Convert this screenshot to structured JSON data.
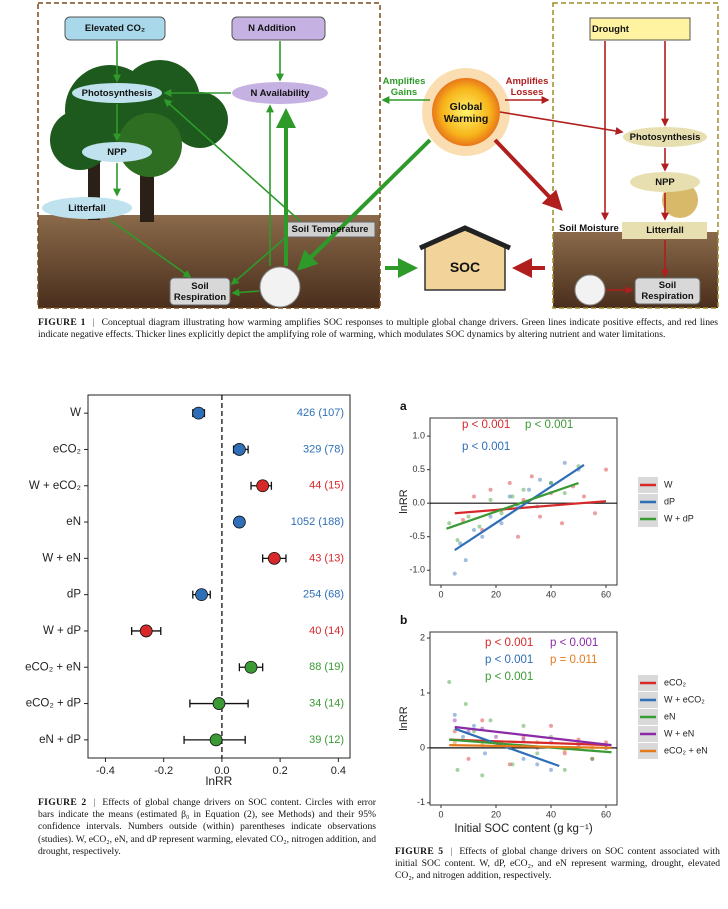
{
  "figure1": {
    "left": {
      "elevated_co2": "Elevated CO₂",
      "n_addition": "N Addition",
      "photosynthesis": "Photosynthesis",
      "n_availability": "N Availability",
      "npp": "NPP",
      "litterfall": "Litterfall",
      "soil_temperature": "Soil Temperature",
      "soil_respiration": "Soil Respiration"
    },
    "center": {
      "amplifies_gains": "Amplifies Gains",
      "global_warming": "Global Warming",
      "amplifies_losses": "Amplifies Losses",
      "soc": "SOC"
    },
    "right": {
      "drought": "Drought",
      "photosynthesis": "Photosynthesis",
      "npp": "NPP",
      "soil_moisture": "Soil Moisture",
      "litterfall": "Litterfall",
      "soil_respiration": "Soil Respiration"
    },
    "caption": {
      "label": "FIGURE 1",
      "separator": "|",
      "text": "Conceptual diagram illustrating how warming amplifies SOC responses to multiple global change drivers. Green lines indicate positive effects, and red lines indicate negative effects. Thicker lines explicitly depict the amplifying role of warming, which modulates SOC dynamics by altering nutrient and water limitations."
    }
  },
  "chart_data": [
    {
      "type": "forest",
      "xlabel": "lnRR",
      "categories": [
        "W",
        "eCO₂",
        "W + eCO₂",
        "eN",
        "W + eN",
        "dP",
        "W + dP",
        "eCO₂ + eN",
        "eCO₂ + dP",
        "eN + dP"
      ],
      "values": [
        -0.08,
        0.06,
        0.14,
        0.06,
        0.18,
        -0.07,
        -0.26,
        0.1,
        -0.01,
        -0.02
      ],
      "ci_low": [
        -0.1,
        0.04,
        0.1,
        0.05,
        0.14,
        -0.1,
        -0.31,
        0.06,
        -0.11,
        -0.13
      ],
      "ci_high": [
        -0.06,
        0.09,
        0.17,
        0.07,
        0.22,
        -0.04,
        -0.21,
        0.14,
        0.09,
        0.08
      ],
      "counts": [
        "426 (107)",
        "329 (78)",
        "44 (15)",
        "1052 (188)",
        "43 (13)",
        "254 (68)",
        "40 (14)",
        "88 (19)",
        "34 (14)",
        "39 (12)"
      ],
      "colors": [
        "#2f6fb8",
        "#2f6fb8",
        "#d7282a",
        "#2f6fb8",
        "#d7282a",
        "#2f6fb8",
        "#d7282a",
        "#3a9a34",
        "#3a9a34",
        "#3a9a34"
      ],
      "xlim": [
        -0.46,
        0.44
      ],
      "xticks": [
        -0.4,
        -0.2,
        {
          "value": 0,
          "label": "0.0"
        },
        0.2,
        0.4
      ],
      "reference_x": 0
    },
    {
      "type": "scatter",
      "panel_label": "a",
      "ylabel": "lnRR",
      "legend": "right",
      "xlim": [
        -4,
        64
      ],
      "ylim": [
        -1.22,
        1.27
      ],
      "xticks": [
        0,
        20,
        40,
        60
      ],
      "yticks": [
        {
          "value": 1,
          "label": "1.0"
        },
        0.5,
        {
          "value": 0,
          "label": "0.0"
        },
        -0.5,
        {
          "value": -1,
          "label": "-1.0"
        }
      ],
      "reference_y": 0,
      "annotations": [
        {
          "text": "p < 0.001",
          "color": "#d7282a"
        },
        {
          "text": "p < 0.001",
          "color": "#3a9a34"
        },
        {
          "text": "p < 0.001",
          "color": "#2f6fb8"
        }
      ],
      "series": [
        {
          "name": "W",
          "color": "#d7282a",
          "x": [
            8,
            12,
            15,
            18,
            22,
            25,
            28,
            30,
            33,
            36,
            40,
            44,
            48,
            52,
            56,
            60
          ],
          "values": [
            -0.25,
            0.1,
            -0.4,
            0.2,
            -0.1,
            0.3,
            -0.5,
            0.05,
            0.4,
            -0.2,
            0.15,
            -0.3,
            0.25,
            0.1,
            -0.15,
            0.5
          ],
          "fit_x": [
            5,
            60
          ],
          "fit_y": [
            -0.15,
            0.03
          ]
        },
        {
          "name": "dP",
          "color": "#2f6fb8",
          "x": [
            5,
            7,
            9,
            12,
            15,
            18,
            22,
            25,
            28,
            32,
            36,
            40,
            45,
            50
          ],
          "values": [
            -1.05,
            -0.6,
            -0.85,
            -0.4,
            -0.5,
            -0.2,
            -0.3,
            0.1,
            -0.05,
            0.2,
            0.35,
            0.3,
            0.6,
            0.5
          ],
          "fit_x": [
            5,
            52
          ],
          "fit_y": [
            -0.7,
            0.57
          ]
        },
        {
          "name": "W + dP",
          "color": "#3a9a34",
          "x": [
            3,
            6,
            10,
            14,
            18,
            22,
            26,
            30,
            35,
            40,
            45,
            50
          ],
          "values": [
            -0.3,
            -0.55,
            -0.2,
            -0.35,
            0.05,
            -0.15,
            0.1,
            0.2,
            -0.05,
            0.3,
            0.15,
            0.55
          ],
          "fit_x": [
            2,
            50
          ],
          "fit_y": [
            -0.38,
            0.3
          ]
        }
      ]
    },
    {
      "type": "scatter",
      "panel_label": "b",
      "ylabel": "lnRR",
      "xlabel": "Initial SOC content (g kg⁻¹)",
      "legend": "right",
      "xlim": [
        -4,
        64
      ],
      "ylim": [
        -1.04,
        2.11
      ],
      "xticks": [
        0,
        20,
        40,
        60
      ],
      "yticks": [
        2,
        1,
        0,
        -1
      ],
      "reference_y": 0,
      "annotations": [
        {
          "text": "p < 0.001",
          "color": "#d7282a"
        },
        {
          "text": "p < 0.001",
          "color": "#8a2aa8"
        },
        {
          "text": "p < 0.001",
          "color": "#2f6fb8"
        },
        {
          "text": "p = 0.011",
          "color": "#e37b1c"
        },
        {
          "text": "p < 0.001",
          "color": "#3a9a34"
        }
      ],
      "series": [
        {
          "name": "eCO₂",
          "color": "#d7282a",
          "x": [
            5,
            10,
            15,
            20,
            25,
            30,
            35,
            40,
            45,
            50,
            55,
            60
          ],
          "values": [
            0.3,
            -0.2,
            0.5,
            0.1,
            -0.3,
            0.2,
            0.0,
            0.4,
            -0.1,
            0.15,
            -0.2,
            0.1
          ],
          "fit_x": [
            3,
            62
          ],
          "fit_y": [
            0.15,
            0.05
          ]
        },
        {
          "name": "W + eCO₂",
          "color": "#2f6fb8",
          "x": [
            5,
            8,
            12,
            16,
            20,
            25,
            30,
            35,
            40
          ],
          "values": [
            0.6,
            0.2,
            0.4,
            -0.1,
            0.1,
            0.0,
            -0.2,
            -0.3,
            -0.4
          ],
          "fit_x": [
            5,
            43
          ],
          "fit_y": [
            0.35,
            -0.33
          ]
        },
        {
          "name": "eN",
          "color": "#3a9a34",
          "x": [
            3,
            6,
            9,
            12,
            15,
            18,
            22,
            26,
            30,
            35,
            40,
            45,
            50,
            55,
            60
          ],
          "values": [
            1.2,
            -0.4,
            0.8,
            0.3,
            -0.5,
            0.5,
            0.1,
            -0.3,
            0.4,
            -0.1,
            0.2,
            -0.4,
            0.1,
            -0.2,
            0.0
          ],
          "fit_x": [
            3,
            62
          ],
          "fit_y": [
            0.15,
            -0.08
          ]
        },
        {
          "name": "W + eN",
          "color": "#8a2aa8",
          "x": [
            5,
            10,
            15,
            20,
            30,
            40,
            50,
            60
          ],
          "values": [
            0.5,
            0.3,
            0.35,
            0.2,
            0.15,
            0.1,
            0.05,
            0.0
          ],
          "fit_x": [
            5,
            62
          ],
          "fit_y": [
            0.38,
            0.05
          ]
        },
        {
          "name": "eCO₂ + eN",
          "color": "#e37b1c",
          "x": [
            5,
            15,
            25,
            35,
            45,
            55
          ],
          "values": [
            0.1,
            0.05,
            0.0,
            0.1,
            -0.05,
            0.0
          ],
          "fit_x": [
            3,
            62
          ],
          "fit_y": [
            0.05,
            0.0
          ]
        }
      ]
    }
  ],
  "captions": {
    "figure2": {
      "label": "FIGURE 2",
      "separator": "|",
      "text": "Effects of global change drivers on SOC content. Circles with error bars indicate the means (estimated β₀ in Equation (2), see Methods) and their 95% confidence intervals. Numbers outside (within) parentheses indicate observations (studies). W, eCO₂, eN, and dP represent warming, elevated CO₂, nitrogen addition, and drought, respectively."
    },
    "figure5": {
      "label": "FIGURE 5",
      "separator": "|",
      "text": "Effects of global change drivers on SOC content associated with initial SOC content. W, dP, eCO₂, and eN represent warming, drought, elevated CO₂, and nitrogen addition, respectively."
    }
  }
}
